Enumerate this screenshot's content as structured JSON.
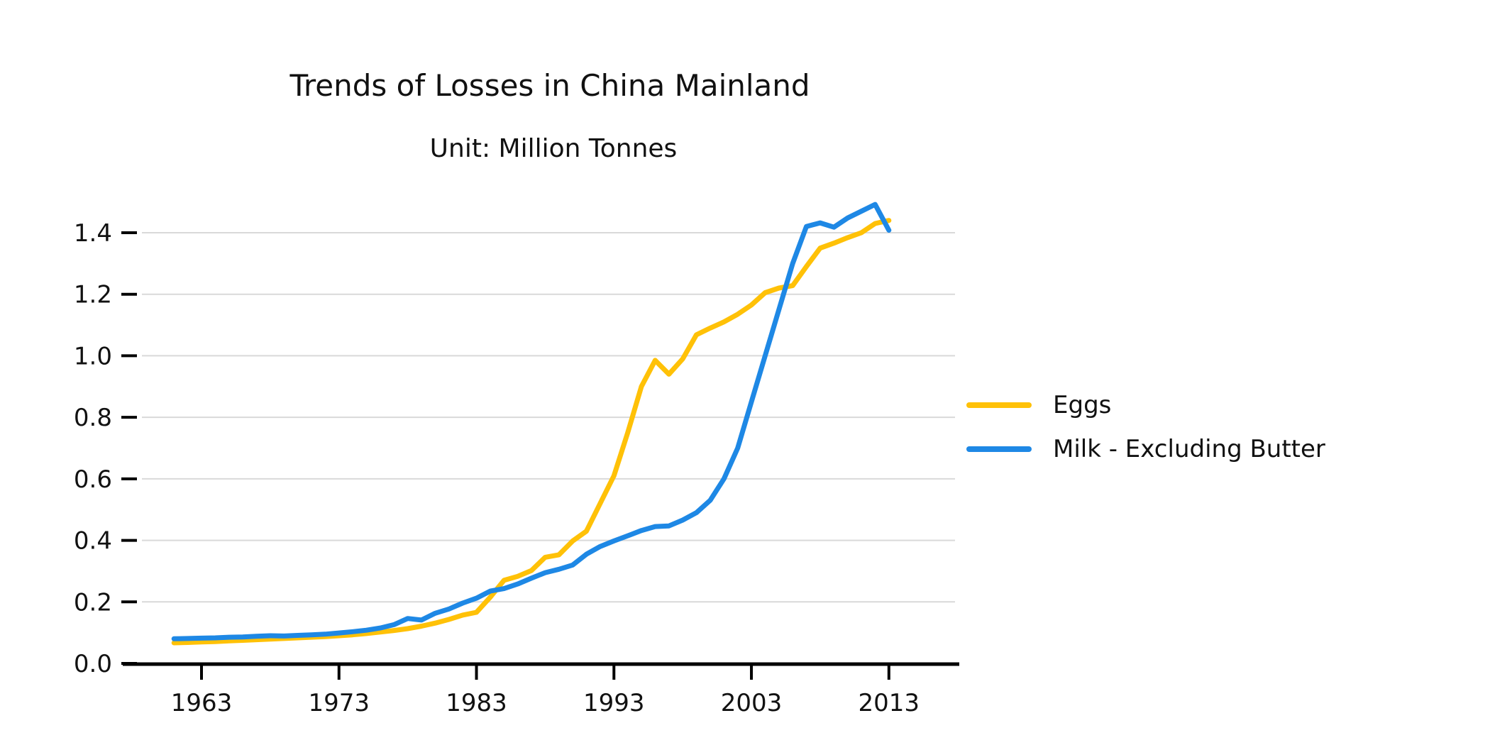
{
  "title": "Trends of Losses in China Mainland",
  "subtitle": "Unit: Million Tonnes",
  "legend": {
    "items": [
      {
        "label": "Eggs",
        "color": "#FFC107"
      },
      {
        "label": "Milk - Excluding Butter",
        "color": "#1E88E5"
      }
    ]
  },
  "axes": {
    "x_tick_labels": [
      "1963",
      "1973",
      "1983",
      "1993",
      "2003",
      "2013"
    ],
    "y_tick_labels": [
      "0.0",
      "0.2",
      "0.4",
      "0.6",
      "0.8",
      "1.0",
      "1.2",
      "1.4"
    ]
  },
  "chart_data": {
    "type": "line",
    "title": "Trends of Losses in China Mainland",
    "subtitle": "Unit: Million Tonnes",
    "xlabel": "",
    "ylabel": "",
    "grid": "horizontal",
    "legend_position": "right",
    "x_ticks": [
      1963,
      1973,
      1983,
      1993,
      2003,
      2013
    ],
    "y_ticks": [
      0.0,
      0.2,
      0.4,
      0.6,
      0.8,
      1.0,
      1.2,
      1.4
    ],
    "xlim": [
      1958.7,
      2017.8
    ],
    "ylim": [
      0,
      1.49
    ],
    "x": [
      1961,
      1962,
      1963,
      1964,
      1965,
      1966,
      1967,
      1968,
      1969,
      1970,
      1971,
      1972,
      1973,
      1974,
      1975,
      1976,
      1977,
      1978,
      1979,
      1980,
      1981,
      1982,
      1983,
      1984,
      1985,
      1986,
      1987,
      1988,
      1989,
      1990,
      1991,
      1992,
      1993,
      1994,
      1995,
      1996,
      1997,
      1998,
      1999,
      2000,
      2001,
      2002,
      2003,
      2004,
      2005,
      2006,
      2007,
      2008,
      2009,
      2010,
      2011,
      2012,
      2013
    ],
    "series": [
      {
        "name": "Eggs",
        "color": "#FFC107",
        "values": [
          0.067,
          0.068,
          0.07,
          0.071,
          0.073,
          0.075,
          0.077,
          0.079,
          0.081,
          0.083,
          0.085,
          0.087,
          0.09,
          0.093,
          0.097,
          0.102,
          0.107,
          0.113,
          0.121,
          0.131,
          0.143,
          0.157,
          0.166,
          0.215,
          0.27,
          0.283,
          0.302,
          0.345,
          0.353,
          0.398,
          0.43,
          0.52,
          0.61,
          0.75,
          0.9,
          0.985,
          0.94,
          0.99,
          1.068,
          1.09,
          1.11,
          1.135,
          1.165,
          1.205,
          1.22,
          1.228,
          1.29,
          1.35,
          1.366,
          1.384,
          1.4,
          1.43,
          1.44
        ]
      },
      {
        "name": "Milk - Excluding Butter",
        "color": "#1E88E5",
        "values": [
          0.08,
          0.081,
          0.082,
          0.083,
          0.085,
          0.086,
          0.088,
          0.09,
          0.089,
          0.091,
          0.093,
          0.095,
          0.099,
          0.103,
          0.108,
          0.115,
          0.126,
          0.146,
          0.141,
          0.163,
          0.177,
          0.196,
          0.212,
          0.235,
          0.243,
          0.258,
          0.277,
          0.295,
          0.306,
          0.32,
          0.355,
          0.38,
          0.398,
          0.415,
          0.432,
          0.445,
          0.447,
          0.466,
          0.49,
          0.53,
          0.6,
          0.7,
          0.85,
          1.0,
          1.15,
          1.3,
          1.42,
          1.432,
          1.418,
          1.448,
          1.47,
          1.492,
          1.408
        ]
      }
    ]
  }
}
